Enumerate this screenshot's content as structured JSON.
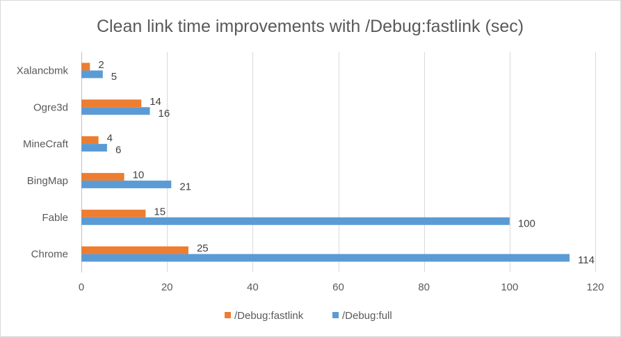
{
  "chart_data": {
    "type": "bar",
    "orientation": "horizontal",
    "title": "Clean link time improvements with /Debug:fastlink (sec)",
    "xlabel": "",
    "ylabel": "",
    "categories": [
      "Xalancbmk",
      "Ogre3d",
      "MineCraft",
      "BingMap",
      "Fable",
      "Chrome"
    ],
    "series": [
      {
        "name": "/Debug:fastlink",
        "color": "#ED7D31",
        "values": [
          2,
          14,
          4,
          10,
          15,
          25
        ]
      },
      {
        "name": "/Debug:full",
        "color": "#5B9BD5",
        "values": [
          5,
          16,
          6,
          21,
          100,
          114
        ]
      }
    ],
    "xlim": [
      0,
      120
    ],
    "xticks": [
      0,
      20,
      40,
      60,
      80,
      100,
      120
    ],
    "grid": true,
    "legend_position": "bottom"
  }
}
